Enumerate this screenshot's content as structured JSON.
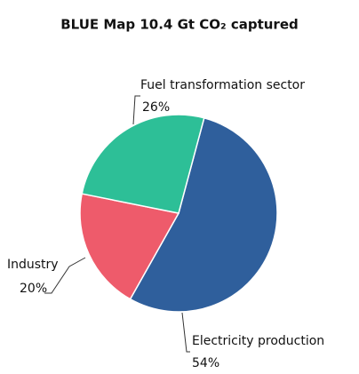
{
  "chart_data": {
    "type": "pie",
    "title": "BLUE Map 10.4 Gt CO₂ captured",
    "categories": [
      "Electricity production",
      "Industry",
      "Fuel transformation sector"
    ],
    "values": [
      54,
      20,
      26
    ],
    "value_labels": [
      "54%",
      "20%",
      "26%"
    ],
    "colors": [
      "#2f5f9c",
      "#ee5b6b",
      "#2dbf97"
    ]
  }
}
